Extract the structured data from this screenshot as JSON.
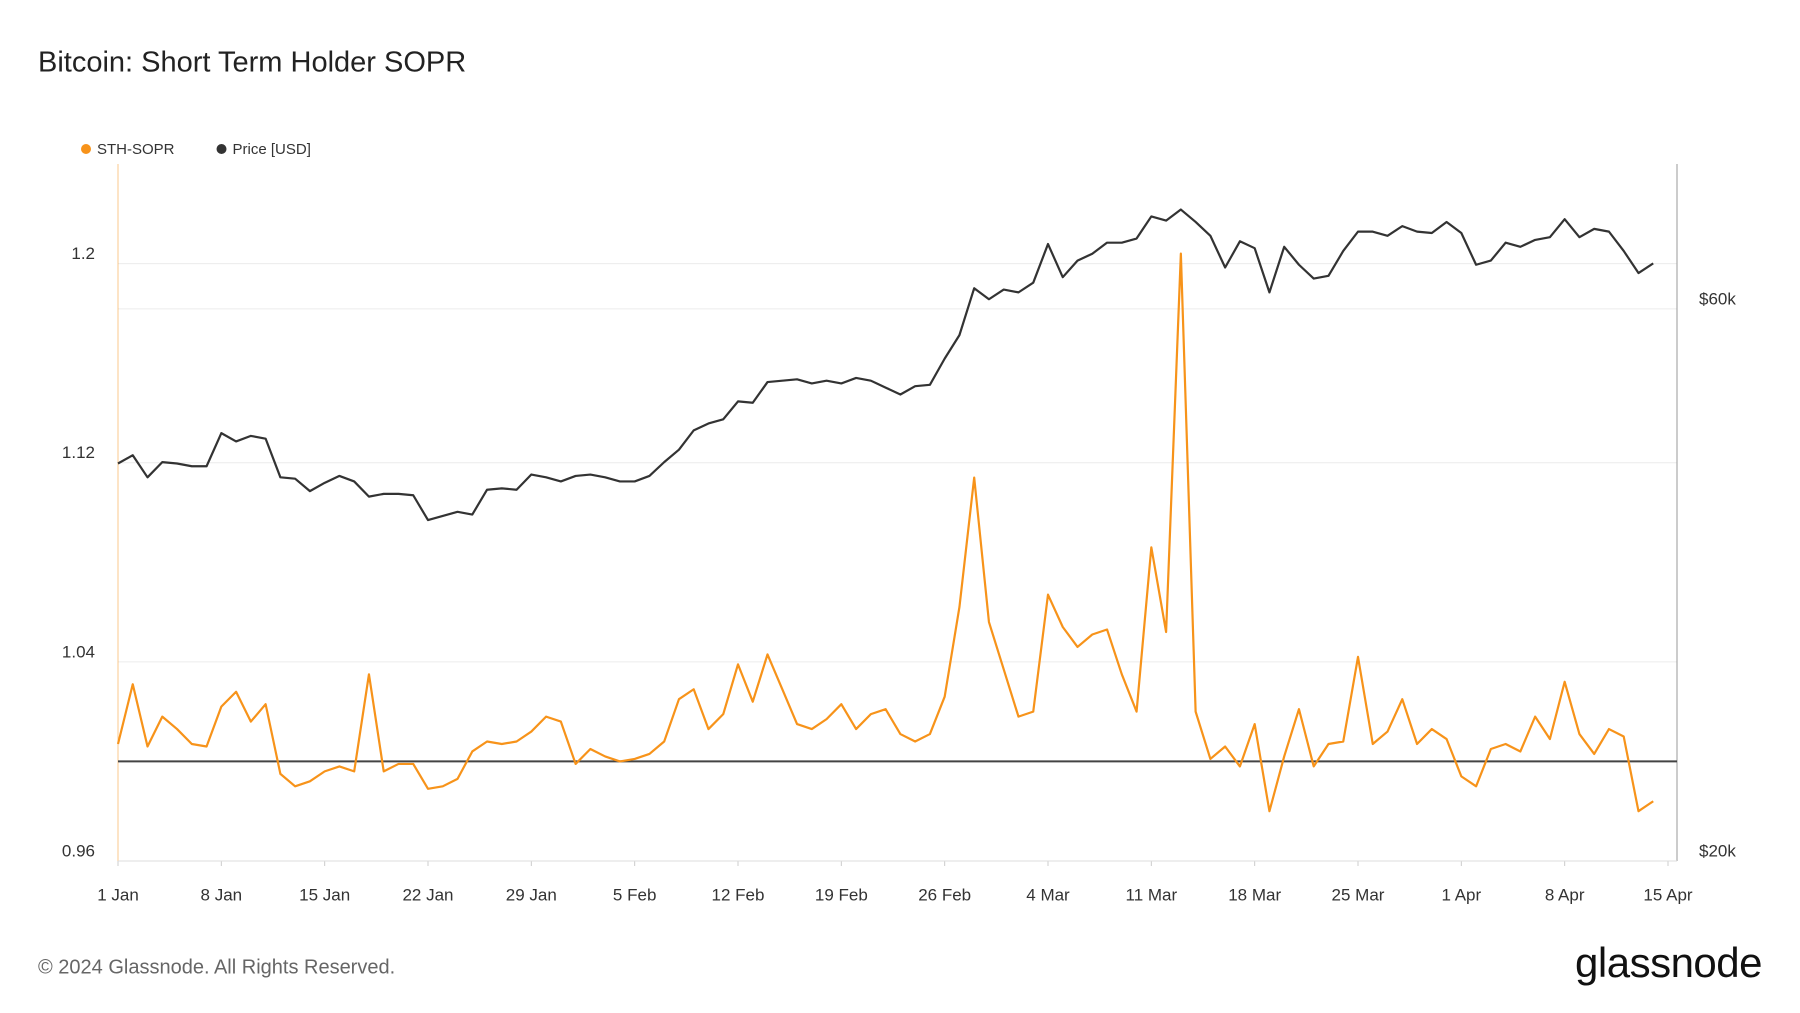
{
  "chart_data": {
    "type": "line",
    "title": "Bitcoin: Short Term Holder SOPR",
    "footer": "© 2024 Glassnode. All Rights Reserved.",
    "brand": "glassnode",
    "x": [
      "1 Jan",
      "2 Jan",
      "3 Jan",
      "4 Jan",
      "5 Jan",
      "6 Jan",
      "7 Jan",
      "8 Jan",
      "9 Jan",
      "10 Jan",
      "11 Jan",
      "12 Jan",
      "13 Jan",
      "14 Jan",
      "15 Jan",
      "16 Jan",
      "17 Jan",
      "18 Jan",
      "19 Jan",
      "20 Jan",
      "21 Jan",
      "22 Jan",
      "23 Jan",
      "24 Jan",
      "25 Jan",
      "26 Jan",
      "27 Jan",
      "28 Jan",
      "29 Jan",
      "30 Jan",
      "31 Jan",
      "1 Feb",
      "2 Feb",
      "3 Feb",
      "4 Feb",
      "5 Feb",
      "6 Feb",
      "7 Feb",
      "8 Feb",
      "9 Feb",
      "10 Feb",
      "11 Feb",
      "12 Feb",
      "13 Feb",
      "14 Feb",
      "15 Feb",
      "16 Feb",
      "17 Feb",
      "18 Feb",
      "19 Feb",
      "20 Feb",
      "21 Feb",
      "22 Feb",
      "23 Feb",
      "24 Feb",
      "25 Feb",
      "26 Feb",
      "27 Feb",
      "28 Feb",
      "29 Feb",
      "1 Mar",
      "2 Mar",
      "3 Mar",
      "4 Mar",
      "5 Mar",
      "6 Mar",
      "7 Mar",
      "8 Mar",
      "9 Mar",
      "10 Mar",
      "11 Mar",
      "12 Mar",
      "13 Mar",
      "14 Mar",
      "15 Mar",
      "16 Mar",
      "17 Mar",
      "18 Mar",
      "19 Mar",
      "20 Mar",
      "21 Mar",
      "22 Mar",
      "23 Mar",
      "24 Mar",
      "25 Mar",
      "26 Mar",
      "27 Mar",
      "28 Mar",
      "29 Mar",
      "30 Mar",
      "31 Mar",
      "1 Apr",
      "2 Apr",
      "3 Apr",
      "4 Apr",
      "5 Apr",
      "6 Apr",
      "7 Apr",
      "8 Apr",
      "9 Apr",
      "10 Apr",
      "11 Apr",
      "12 Apr",
      "13 Apr",
      "14 Apr",
      "15 Apr"
    ],
    "xticks": [
      "1 Jan",
      "8 Jan",
      "15 Jan",
      "22 Jan",
      "29 Jan",
      "5 Feb",
      "12 Feb",
      "19 Feb",
      "26 Feb",
      "4 Mar",
      "11 Mar",
      "18 Mar",
      "25 Mar",
      "1 Apr",
      "8 Apr",
      "15 Apr"
    ],
    "series": [
      {
        "name": "STH-SOPR",
        "color": "#f7931a",
        "values": [
          1.007,
          1.031,
          1.006,
          1.018,
          1.013,
          1.007,
          1.006,
          1.022,
          1.028,
          1.016,
          1.023,
          0.995,
          0.99,
          0.992,
          0.996,
          0.998,
          0.996,
          1.035,
          0.996,
          0.999,
          0.999,
          0.989,
          0.99,
          0.993,
          1.004,
          1.008,
          1.007,
          1.008,
          1.012,
          1.018,
          1.016,
          0.999,
          1.005,
          1.002,
          1.0,
          1.001,
          1.003,
          1.008,
          1.025,
          1.029,
          1.013,
          1.019,
          1.039,
          1.024,
          1.043,
          1.029,
          1.015,
          1.013,
          1.017,
          1.023,
          1.013,
          1.019,
          1.021,
          1.011,
          1.008,
          1.011,
          1.026,
          1.062,
          1.114,
          1.056,
          1.037,
          1.018,
          1.02,
          1.067,
          1.054,
          1.046,
          1.051,
          1.053,
          1.035,
          1.02,
          1.086,
          1.052,
          1.204,
          1.02,
          1.001,
          1.006,
          0.998,
          1.015,
          0.98,
          1.002,
          1.021,
          0.998,
          1.007,
          1.008,
          1.042,
          1.007,
          1.012,
          1.025,
          1.007,
          1.013,
          1.009,
          0.994,
          0.99,
          1.005,
          1.007,
          1.004,
          1.018,
          1.009,
          1.032,
          1.011,
          1.003,
          1.013,
          1.01,
          0.98,
          0.984,
          null
        ]
      },
      {
        "name": "Price [USD]",
        "color": "#333333",
        "axis": "y2",
        "values": [
          48800,
          49400,
          47800,
          48900,
          48800,
          48600,
          48600,
          51000,
          50400,
          50800,
          50600,
          47800,
          47700,
          46800,
          47400,
          47900,
          47500,
          46400,
          46600,
          46600,
          46500,
          44700,
          45000,
          45300,
          45100,
          46900,
          47000,
          46900,
          48000,
          47800,
          47500,
          47900,
          48000,
          47800,
          47500,
          47500,
          47900,
          48900,
          49800,
          51200,
          51700,
          52000,
          53300,
          53200,
          54700,
          54800,
          54900,
          54600,
          54800,
          54600,
          55000,
          54800,
          54300,
          53800,
          54400,
          54500,
          56400,
          58100,
          61500,
          60700,
          61400,
          61200,
          61900,
          64700,
          62300,
          63500,
          64000,
          64800,
          64800,
          65100,
          66700,
          66400,
          67200,
          66300,
          65300,
          63000,
          64900,
          64400,
          61200,
          64500,
          63200,
          62200,
          62400,
          64200,
          65600,
          65600,
          65300,
          66000,
          65600,
          65500,
          66300,
          65500,
          63200,
          63500,
          64800,
          64500,
          65000,
          65200,
          66500,
          65200,
          65800,
          65600,
          64200,
          62600,
          63300,
          null
        ]
      }
    ],
    "ylim": [
      0.96,
      1.24
    ],
    "yticks": [
      0.96,
      1.04,
      1.12,
      1.2
    ],
    "y2lim": [
      20000,
      70500
    ],
    "y2ticks": [
      {
        "value": 20000,
        "label": "$20k"
      },
      {
        "value": 60000,
        "label": "$60k"
      }
    ],
    "reference_line": 1,
    "grid": true
  }
}
